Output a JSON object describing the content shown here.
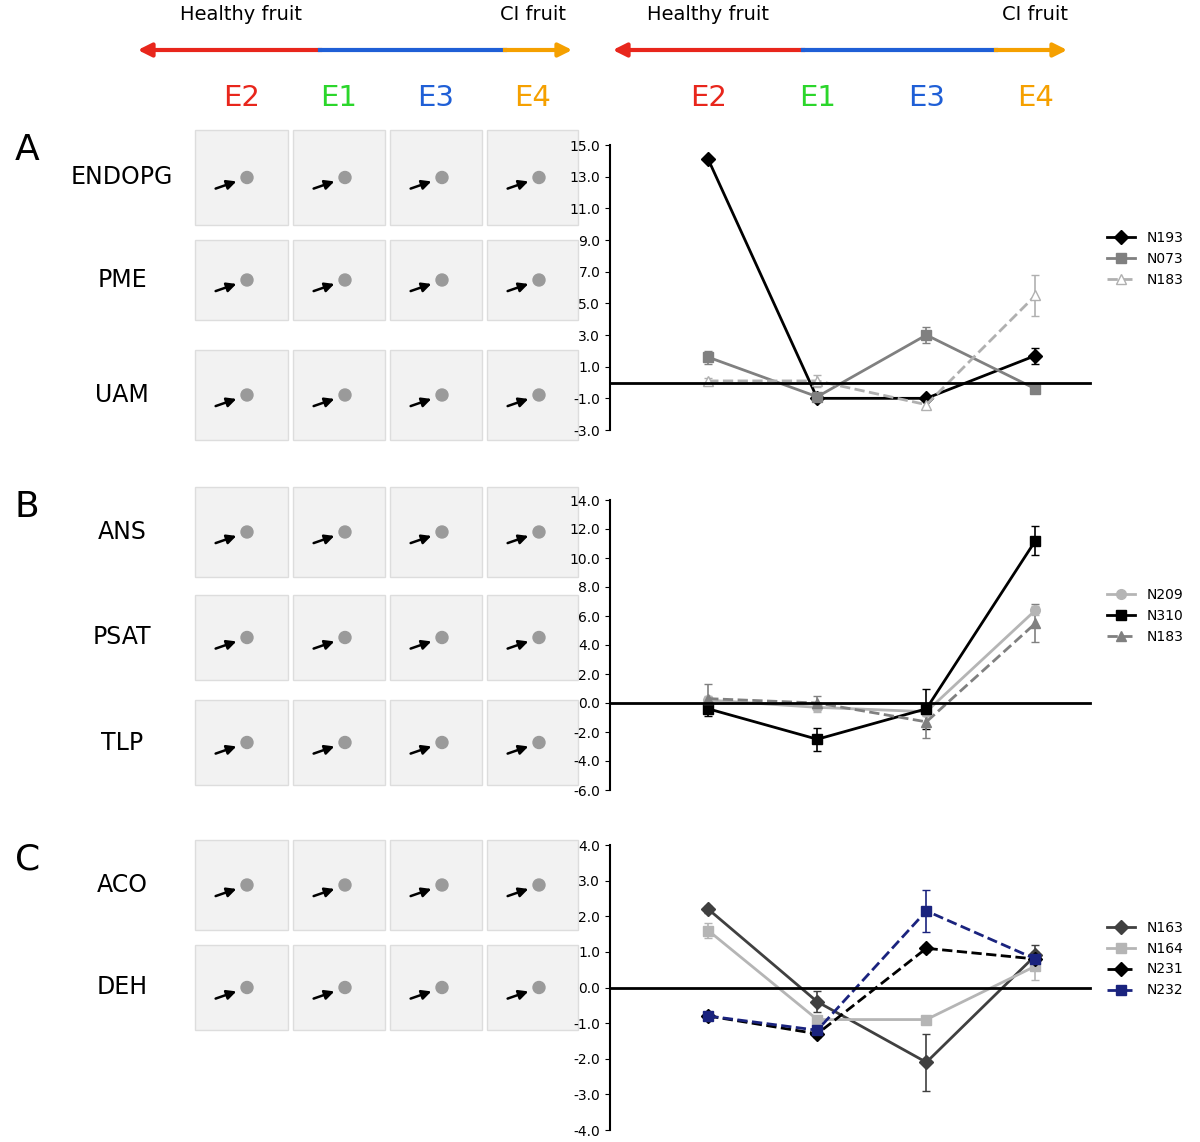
{
  "header": {
    "left": "Healthy fruit",
    "right": "CI fruit",
    "columns": [
      "E2",
      "E1",
      "E3",
      "E4"
    ],
    "column_colors": [
      "#e8261c",
      "#2bd62b",
      "#1f5fd6",
      "#f5a000"
    ]
  },
  "panels": [
    {
      "label": "A",
      "gels": [
        "ENDOPG",
        "PME",
        "UAM"
      ]
    },
    {
      "label": "B",
      "gels": [
        "ANS",
        "PSAT",
        "TLP"
      ]
    },
    {
      "label": "C",
      "gels": [
        "ACO",
        "DEH"
      ]
    }
  ],
  "chart_data": [
    {
      "type": "line",
      "categories": [
        null,
        null,
        null,
        null
      ],
      "tick_labels": "y",
      "legend": "center left",
      "ylim": [
        -3,
        15
      ],
      "yticks": [
        {
          "value": -3,
          "label": "-3.0"
        },
        {
          "value": -1,
          "label": "-1.0"
        },
        {
          "value": 1,
          "label": "1.0"
        },
        {
          "value": 3,
          "label": "3.0"
        },
        {
          "value": 5,
          "label": "5.0"
        },
        {
          "value": 7,
          "label": "7.0"
        },
        {
          "value": 9,
          "label": "9.0"
        },
        {
          "value": 11,
          "label": "11.0"
        },
        {
          "value": 13,
          "label": "13.0"
        },
        {
          "value": 15,
          "label": "15.0"
        }
      ],
      "series": [
        {
          "name": "N193",
          "color": "#000000",
          "marker": "diamond",
          "line_style": "solid",
          "values": [
            14.1,
            -1.0,
            -1.0,
            1.7
          ],
          "errors": [
            0.1,
            0.1,
            0.1,
            0.5
          ]
        },
        {
          "name": "N073",
          "color": "#808080",
          "marker": "square",
          "line_style": "solid",
          "values": [
            1.6,
            -0.9,
            3.0,
            -0.4
          ],
          "errors": [
            0.4,
            0.2,
            0.5,
            0.2
          ]
        },
        {
          "name": "N183",
          "color": "#b0b0b0",
          "marker": "triangle-open",
          "line_style": "dashed",
          "values": [
            0.1,
            0.1,
            -1.4,
            5.5
          ],
          "errors": [
            0.2,
            0.4,
            0.3,
            1.3
          ]
        }
      ]
    },
    {
      "type": "line",
      "categories": [
        null,
        null,
        null,
        null
      ],
      "tick_labels": "y",
      "legend": "center left",
      "ylim": [
        -6,
        14
      ],
      "yticks": [
        {
          "value": -6,
          "label": "-6.0"
        },
        {
          "value": -4,
          "label": "-4.0"
        },
        {
          "value": -2,
          "label": "-2.0"
        },
        {
          "value": 0,
          "label": "0.0"
        },
        {
          "value": 2,
          "label": "2.0"
        },
        {
          "value": 4,
          "label": "4.0"
        },
        {
          "value": 6,
          "label": "6.0"
        },
        {
          "value": 8,
          "label": "8.0"
        },
        {
          "value": 10,
          "label": "10.0"
        },
        {
          "value": 12,
          "label": "12.0"
        },
        {
          "value": 14,
          "label": "14.0"
        }
      ],
      "series": [
        {
          "name": "N209",
          "color": "#b5b5b5",
          "marker": "circle",
          "line_style": "solid",
          "values": [
            0.2,
            -0.3,
            -0.6,
            6.4
          ],
          "errors": [
            0.3,
            0.3,
            0.3,
            0.3
          ]
        },
        {
          "name": "N310",
          "color": "#000000",
          "marker": "square",
          "line_style": "solid",
          "values": [
            -0.4,
            -2.5,
            -0.4,
            11.2
          ],
          "errors": [
            0.5,
            0.8,
            1.4,
            1.0
          ]
        },
        {
          "name": "N183",
          "color": "#808080",
          "marker": "triangle",
          "line_style": "dashed",
          "values": [
            0.3,
            0.0,
            -1.3,
            5.5
          ],
          "errors": [
            1.0,
            0.5,
            1.1,
            1.3
          ]
        }
      ]
    },
    {
      "type": "line",
      "categories": [
        null,
        null,
        null,
        null
      ],
      "tick_labels": "y",
      "legend": "center left",
      "ylim": [
        -4,
        4
      ],
      "yticks": [
        {
          "value": -4,
          "label": "-4.0"
        },
        {
          "value": -3,
          "label": "-3.0"
        },
        {
          "value": -2,
          "label": "-2.0"
        },
        {
          "value": -1,
          "label": "-1.0"
        },
        {
          "value": 0,
          "label": "0.0"
        },
        {
          "value": 1,
          "label": "1.0"
        },
        {
          "value": 2,
          "label": "2.0"
        },
        {
          "value": 3,
          "label": "3.0"
        },
        {
          "value": 4,
          "label": "4.0"
        }
      ],
      "series": [
        {
          "name": "N163",
          "color": "#404040",
          "marker": "diamond",
          "line_style": "solid",
          "values": [
            2.2,
            -0.4,
            -2.1,
            0.9
          ],
          "errors": [
            0.1,
            0.3,
            0.8,
            0.3
          ]
        },
        {
          "name": "N164",
          "color": "#b5b5b5",
          "marker": "square",
          "line_style": "solid",
          "values": [
            1.6,
            -0.9,
            -0.9,
            0.6
          ],
          "errors": [
            0.2,
            0.1,
            0.1,
            0.4
          ]
        },
        {
          "name": "N231",
          "color": "#000000",
          "marker": "diamond",
          "line_style": "dashed",
          "values": [
            -0.8,
            -1.3,
            1.1,
            0.8
          ],
          "errors": [
            0.1,
            0.1,
            0.1,
            0.1
          ]
        },
        {
          "name": "N232",
          "color": "#1a237e",
          "marker": "square",
          "line_style": "dashed",
          "values": [
            -0.8,
            -1.2,
            2.15,
            0.8
          ],
          "errors": [
            0.1,
            0.2,
            0.6,
            0.2
          ]
        }
      ]
    }
  ]
}
